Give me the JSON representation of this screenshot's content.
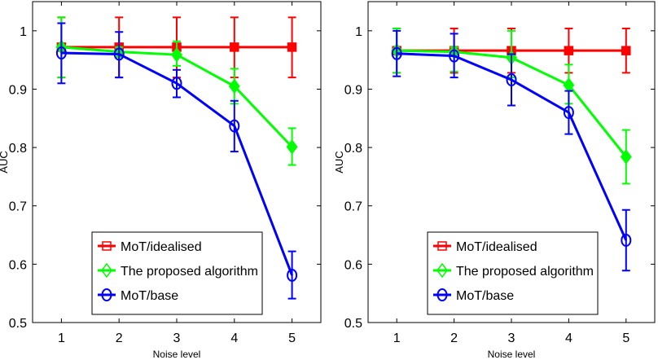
{
  "chart_data": [
    {
      "type": "line",
      "title": "",
      "xlabel": "Noise level",
      "ylabel": "AUC",
      "xlim": [
        0.5,
        5.5
      ],
      "ylim": [
        0.5,
        1.05
      ],
      "xticks": [
        "1",
        "2",
        "3",
        "4",
        "5"
      ],
      "yticks": [
        "0.5",
        "0.6",
        "0.7",
        "0.8",
        "0.9",
        "1"
      ],
      "x": [
        1,
        2,
        3,
        4,
        5
      ],
      "legend_position": "bottom-center",
      "series": [
        {
          "name": "MoT/idealised",
          "color": "#ff0000",
          "marker": "square",
          "values": [
            0.972,
            0.972,
            0.972,
            0.972,
            0.972
          ],
          "err_low": [
            0.92,
            0.92,
            0.92,
            0.92,
            0.92
          ],
          "err_high": [
            1.023,
            1.023,
            1.023,
            1.023,
            1.023
          ]
        },
        {
          "name": "The proposed algorithm",
          "color": "#00ff00",
          "marker": "diamond",
          "values": [
            0.972,
            0.964,
            0.959,
            0.905,
            0.801
          ],
          "err_low": [
            0.92,
            0.955,
            0.94,
            0.875,
            0.77
          ],
          "err_high": [
            1.023,
            0.972,
            0.982,
            0.935,
            0.833
          ]
        },
        {
          "name": "MoT/base",
          "color": "#0000ff",
          "marker": "circle",
          "values": [
            0.962,
            0.96,
            0.91,
            0.837,
            0.581
          ],
          "err_low": [
            0.91,
            0.92,
            0.886,
            0.793,
            0.541
          ],
          "err_high": [
            1.013,
            0.998,
            0.933,
            0.88,
            0.622
          ]
        }
      ]
    },
    {
      "type": "line",
      "title": "",
      "xlabel": "Noise level",
      "ylabel": "AUC",
      "xlim": [
        0.5,
        5.5
      ],
      "ylim": [
        0.5,
        1.05
      ],
      "xticks": [
        "1",
        "2",
        "3",
        "4",
        "5"
      ],
      "yticks": [
        "0.5",
        "0.6",
        "0.7",
        "0.8",
        "0.9",
        "1"
      ],
      "x": [
        1,
        2,
        3,
        4,
        5
      ],
      "legend_position": "bottom-center",
      "series": [
        {
          "name": "MoT/idealised",
          "color": "#ff0000",
          "marker": "square",
          "values": [
            0.966,
            0.966,
            0.966,
            0.966,
            0.966
          ],
          "err_low": [
            0.928,
            0.928,
            0.928,
            0.928,
            0.928
          ],
          "err_high": [
            1.004,
            1.004,
            1.004,
            1.004,
            1.004
          ]
        },
        {
          "name": "The proposed algorithm",
          "color": "#00ff00",
          "marker": "diamond",
          "values": [
            0.966,
            0.964,
            0.954,
            0.907,
            0.784
          ],
          "err_low": [
            0.928,
            0.93,
            0.92,
            0.875,
            0.738
          ],
          "err_high": [
            1.004,
            0.972,
            1.0,
            0.942,
            0.83
          ]
        },
        {
          "name": "MoT/base",
          "color": "#0000ff",
          "marker": "circle",
          "values": [
            0.961,
            0.957,
            0.916,
            0.86,
            0.641
          ],
          "err_low": [
            0.922,
            0.92,
            0.872,
            0.823,
            0.589
          ],
          "err_high": [
            1.0,
            0.995,
            0.96,
            0.897,
            0.693
          ]
        }
      ]
    }
  ]
}
